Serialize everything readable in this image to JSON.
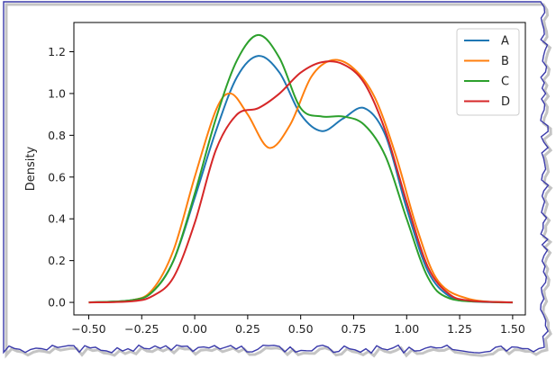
{
  "chart_data": {
    "type": "line",
    "title": "",
    "xlabel": "",
    "ylabel": "Density",
    "xlim": [
      -0.57,
      1.56
    ],
    "ylim": [
      -0.06,
      1.34
    ],
    "xticks": [
      -0.5,
      -0.25,
      0.0,
      0.25,
      0.5,
      0.75,
      1.0,
      1.25,
      1.5
    ],
    "xtick_labels": [
      "−0.50",
      "−0.25",
      "0.00",
      "0.25",
      "0.50",
      "0.75",
      "1.00",
      "1.25",
      "1.50"
    ],
    "yticks": [
      0.0,
      0.2,
      0.4,
      0.6,
      0.8,
      1.0,
      1.2
    ],
    "ytick_labels": [
      "0.0",
      "0.2",
      "0.4",
      "0.6",
      "0.8",
      "1.0",
      "1.2"
    ],
    "grid": false,
    "legend_position": "top-right",
    "series": [
      {
        "name": "A",
        "color": "#1f77b4",
        "points": [
          [
            -0.5,
            0.0
          ],
          [
            -0.3,
            0.01
          ],
          [
            -0.2,
            0.05
          ],
          [
            -0.1,
            0.2
          ],
          [
            0.0,
            0.5
          ],
          [
            0.1,
            0.82
          ],
          [
            0.2,
            1.08
          ],
          [
            0.3,
            1.18
          ],
          [
            0.4,
            1.1
          ],
          [
            0.5,
            0.9
          ],
          [
            0.6,
            0.82
          ],
          [
            0.7,
            0.88
          ],
          [
            0.8,
            0.93
          ],
          [
            0.9,
            0.8
          ],
          [
            1.0,
            0.45
          ],
          [
            1.1,
            0.15
          ],
          [
            1.2,
            0.03
          ],
          [
            1.3,
            0.005
          ],
          [
            1.5,
            0.0
          ]
        ]
      },
      {
        "name": "B",
        "color": "#ff7f0e",
        "points": [
          [
            -0.5,
            0.0
          ],
          [
            -0.3,
            0.01
          ],
          [
            -0.2,
            0.06
          ],
          [
            -0.1,
            0.25
          ],
          [
            0.0,
            0.6
          ],
          [
            0.1,
            0.92
          ],
          [
            0.17,
            1.0
          ],
          [
            0.25,
            0.9
          ],
          [
            0.35,
            0.74
          ],
          [
            0.45,
            0.85
          ],
          [
            0.55,
            1.08
          ],
          [
            0.65,
            1.16
          ],
          [
            0.75,
            1.12
          ],
          [
            0.85,
            0.98
          ],
          [
            0.95,
            0.7
          ],
          [
            1.05,
            0.35
          ],
          [
            1.15,
            0.1
          ],
          [
            1.3,
            0.015
          ],
          [
            1.5,
            0.0
          ]
        ]
      },
      {
        "name": "C",
        "color": "#2ca02c",
        "points": [
          [
            -0.5,
            0.0
          ],
          [
            -0.3,
            0.01
          ],
          [
            -0.2,
            0.05
          ],
          [
            -0.1,
            0.2
          ],
          [
            0.0,
            0.52
          ],
          [
            0.1,
            0.88
          ],
          [
            0.2,
            1.16
          ],
          [
            0.3,
            1.28
          ],
          [
            0.4,
            1.17
          ],
          [
            0.5,
            0.93
          ],
          [
            0.6,
            0.89
          ],
          [
            0.7,
            0.89
          ],
          [
            0.8,
            0.85
          ],
          [
            0.9,
            0.7
          ],
          [
            1.0,
            0.4
          ],
          [
            1.1,
            0.12
          ],
          [
            1.2,
            0.02
          ],
          [
            1.4,
            0.002
          ],
          [
            1.5,
            0.0
          ]
        ]
      },
      {
        "name": "D",
        "color": "#d62728",
        "points": [
          [
            -0.5,
            0.0
          ],
          [
            -0.3,
            0.005
          ],
          [
            -0.2,
            0.03
          ],
          [
            -0.1,
            0.12
          ],
          [
            0.0,
            0.38
          ],
          [
            0.1,
            0.73
          ],
          [
            0.2,
            0.9
          ],
          [
            0.3,
            0.93
          ],
          [
            0.4,
            1.0
          ],
          [
            0.5,
            1.1
          ],
          [
            0.6,
            1.15
          ],
          [
            0.7,
            1.14
          ],
          [
            0.8,
            1.05
          ],
          [
            0.9,
            0.82
          ],
          [
            1.0,
            0.48
          ],
          [
            1.1,
            0.17
          ],
          [
            1.2,
            0.04
          ],
          [
            1.3,
            0.008
          ],
          [
            1.5,
            0.0
          ]
        ]
      }
    ]
  }
}
